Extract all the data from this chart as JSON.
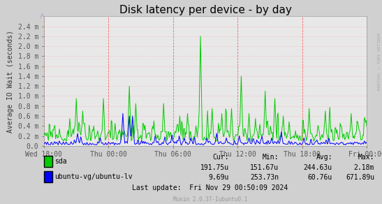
{
  "title": "Disk latency per device - by day",
  "ylabel": "Average IO Wait (seconds)",
  "background_color": "#d0d0d0",
  "plot_bg_color": "#e8e8e8",
  "grid_color": "#ffaaaa",
  "title_fontsize": 11,
  "axis_label_fontsize": 7,
  "tick_fontsize": 7,
  "sda_color": "#00cc00",
  "lv_color": "#0000ff",
  "ylim_max": 0.0026,
  "ytick_vals": [
    0.0,
    0.0002,
    0.0004,
    0.0006,
    0.0008,
    0.001,
    0.0012,
    0.0014,
    0.0016,
    0.0018,
    0.002,
    0.0022,
    0.0024
  ],
  "ytick_labels": [
    "0.0",
    "0.2 m",
    "0.4 m",
    "0.6 m",
    "0.8 m",
    "1.0 m",
    "1.2 m",
    "1.4 m",
    "1.6 m",
    "1.8 m",
    "2.0 m",
    "2.2 m",
    "2.4 m"
  ],
  "xtick_labels": [
    "Wed 18:00",
    "Thu 00:00",
    "Thu 06:00",
    "Thu 12:00",
    "Thu 18:00",
    "Fri 00:00"
  ],
  "vline_color": "#ff4444",
  "legend_entries": [
    "sda",
    "ubuntu-vg/ubuntu-lv"
  ],
  "stats_headers": [
    "Cur:",
    "Min:",
    "Avg:",
    "Max:"
  ],
  "stats_cur": [
    "191.75u",
    "9.69u"
  ],
  "stats_min": [
    "151.67u",
    "253.73n"
  ],
  "stats_avg": [
    "244.63u",
    "60.76u"
  ],
  "stats_max": [
    "2.18m",
    "671.89u"
  ],
  "last_update": "Last update:  Fri Nov 29 00:50:09 2024",
  "watermark": "Munin 2.0.37-1ubuntu0.1",
  "rrdtool_text": "RRDTOOL / TOBI OETIKER",
  "n_points": 500
}
